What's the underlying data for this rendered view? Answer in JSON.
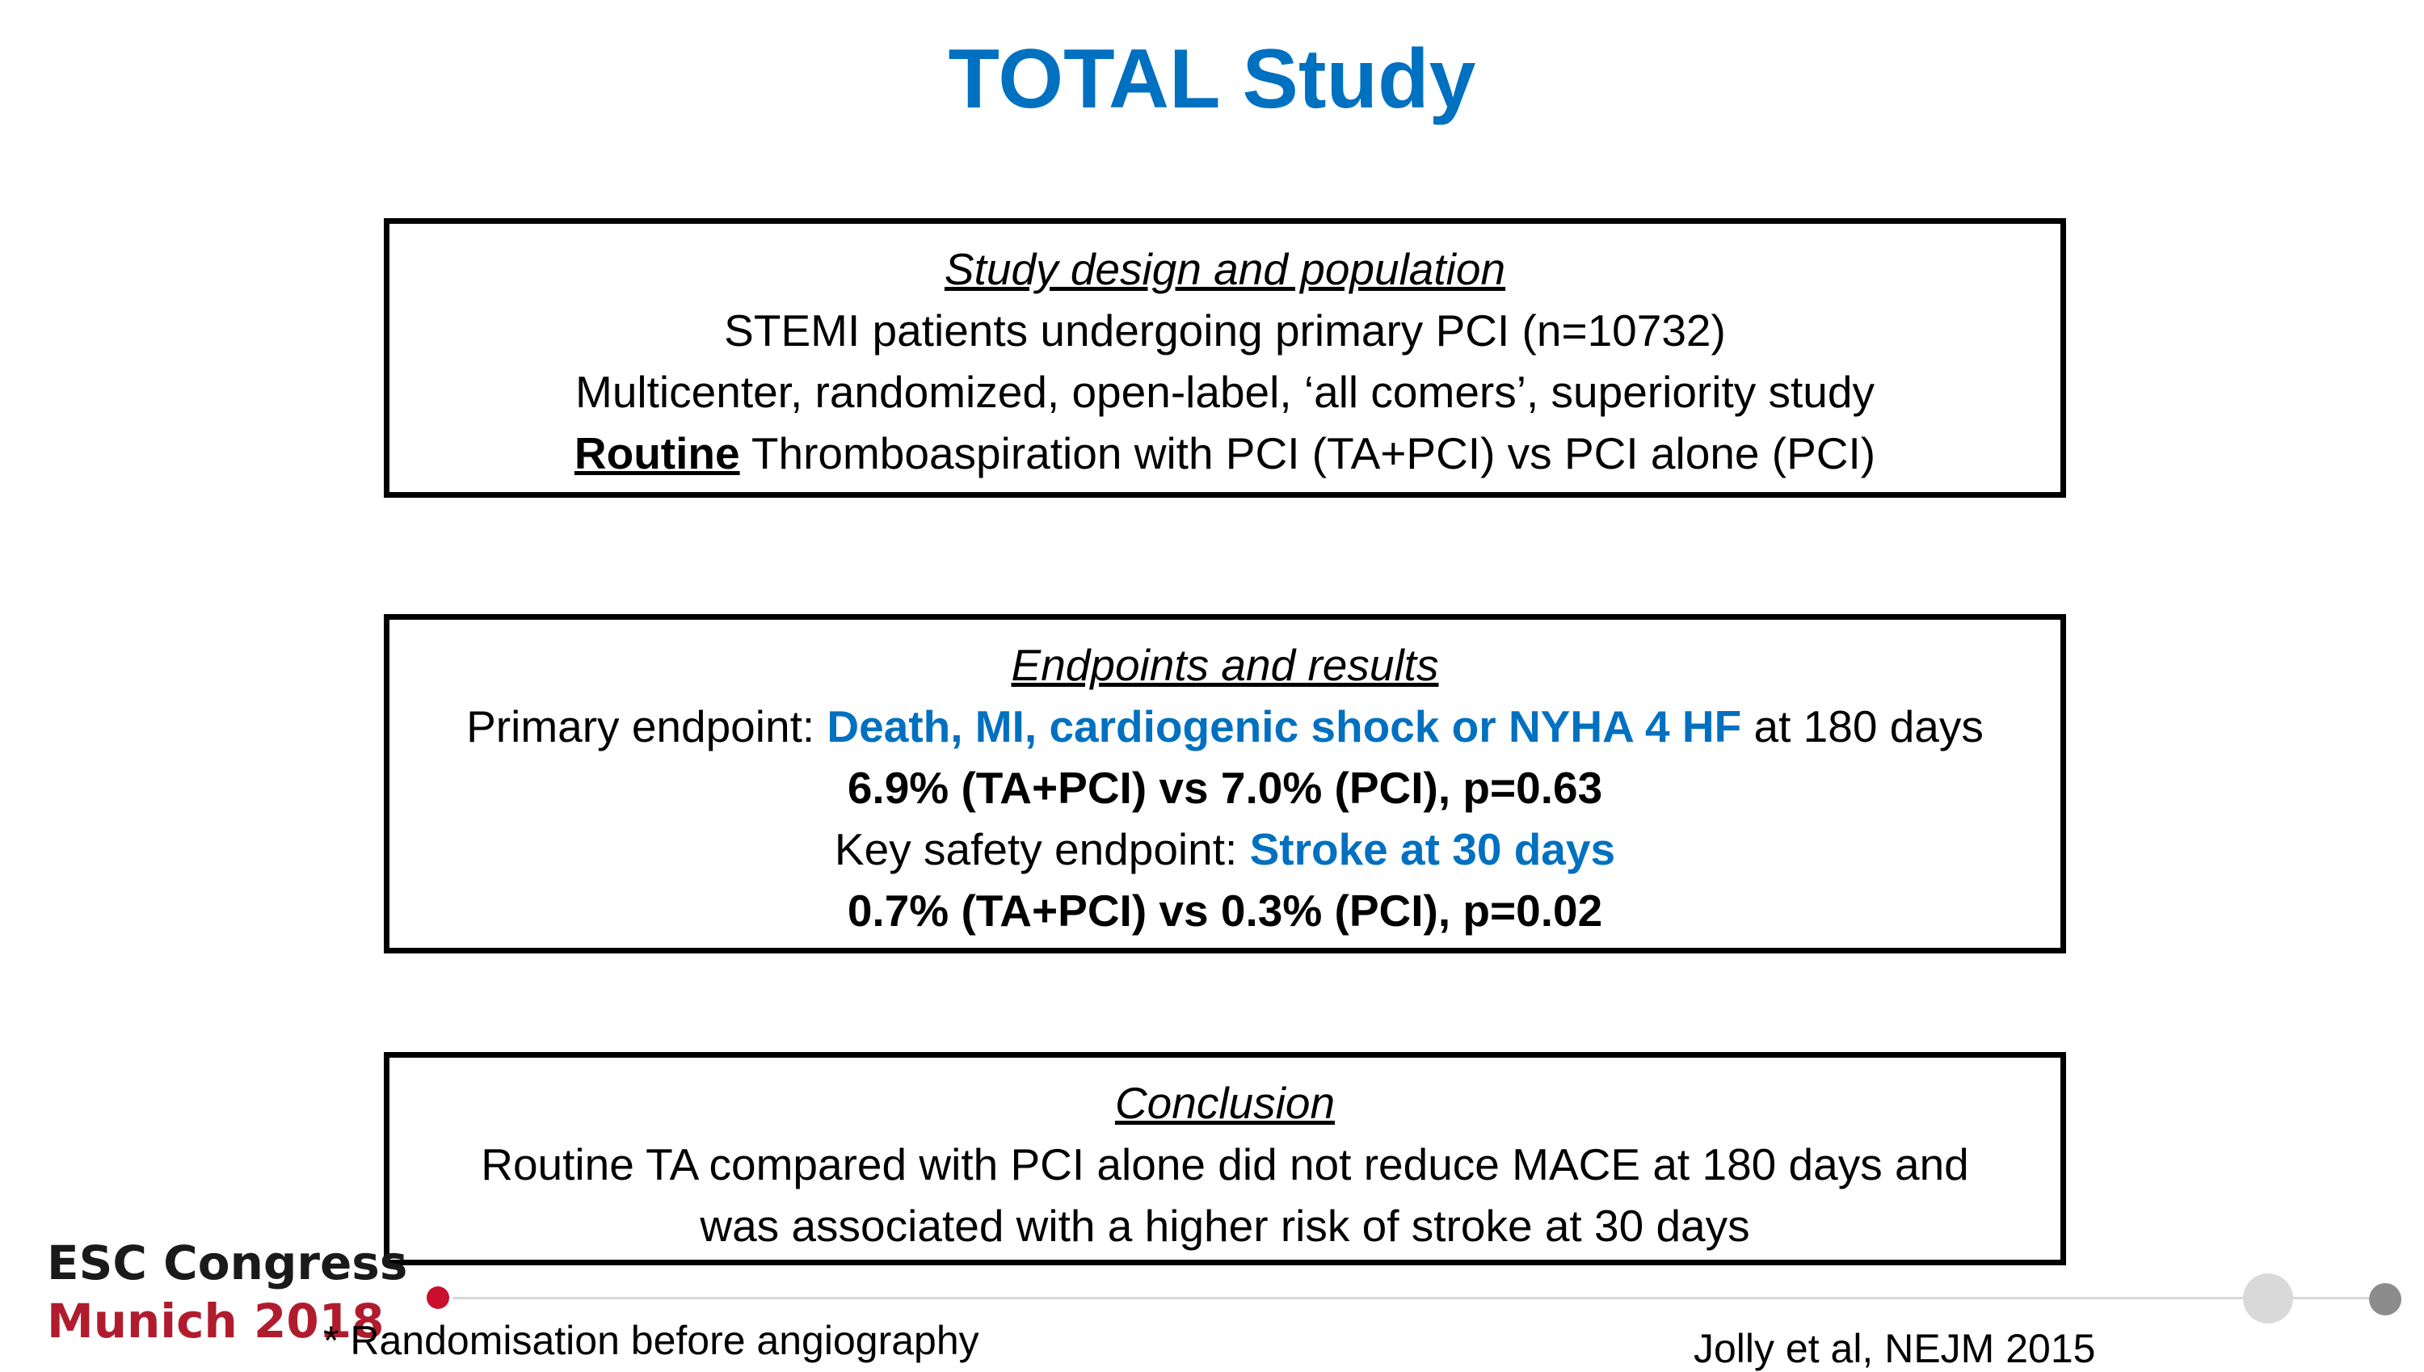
{
  "title": "TOTAL Study",
  "design": {
    "heading": "Study design and population",
    "line1": "STEMI patients undergoing primary PCI (n=10732)",
    "line2": "Multicenter, randomized, open-label, ‘all comers’, superiority study",
    "line3_emphasis": "Routine",
    "line3_rest": " Thromboaspiration with PCI (TA+PCI)  vs PCI alone (PCI)"
  },
  "endpoints": {
    "heading": "Endpoints and results",
    "primary_prefix": "Primary endpoint: ",
    "primary_highlight": "Death, MI, cardiogenic shock or NYHA 4 HF",
    "primary_suffix": " at 180 days",
    "primary_result": "6.9% (TA+PCI) vs 7.0% (PCI), p=0.63",
    "safety_prefix": "Key safety endpoint: ",
    "safety_highlight": "Stroke at 30 days",
    "safety_result": "0.7% (TA+PCI) vs 0.3% (PCI), p=0.02"
  },
  "conclusion": {
    "heading": "Conclusion",
    "line1": "Routine TA compared with PCI alone did not reduce MACE at 180 days and",
    "line2": "was associated with a higher risk of stroke at 30 days"
  },
  "logo": {
    "line1": "ESC Congress",
    "line2": "Munich 2018"
  },
  "footnote": "* Randomisation before angiography",
  "reference": "Jolly et al, NEJM 2015",
  "colors": {
    "accent": "#0070C0",
    "brand_red": "#b01c2e"
  }
}
